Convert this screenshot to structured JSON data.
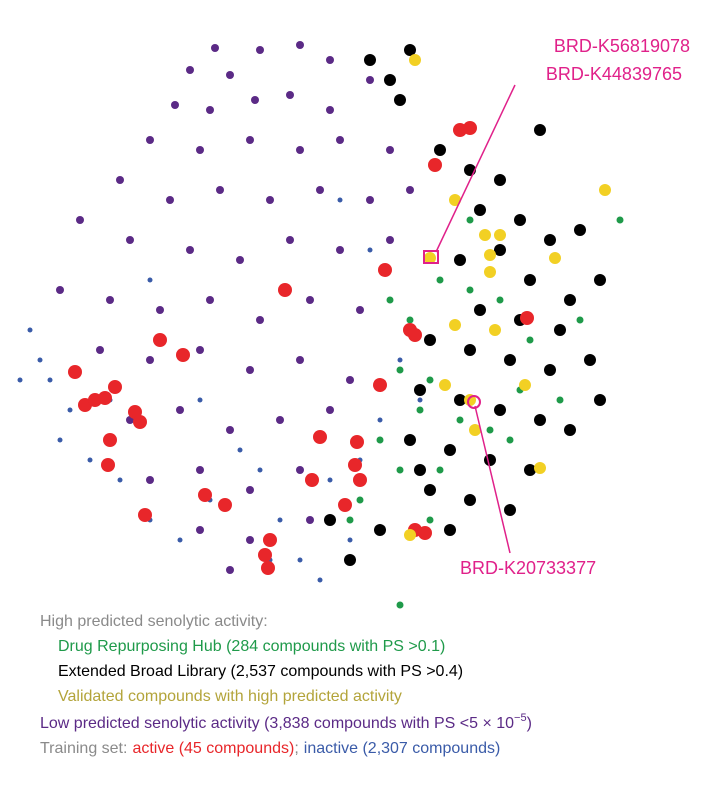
{
  "chart_data": {
    "type": "scatter",
    "xlim": [
      0,
      640
    ],
    "ylim": [
      0,
      590
    ],
    "legend_heading": "High predicted senolytic activity:",
    "training_set_label": "Training set:",
    "legend_separator": ";",
    "series": [
      {
        "name": "Low predicted senolytic activity (3,838 compounds with PS <5 × 10",
        "name_superscript": "−5",
        "name_suffix": ")",
        "color": "#5b2a86",
        "x": [
          215,
          260,
          300,
          190,
          230,
          330,
          175,
          210,
          255,
          290,
          330,
          370,
          150,
          200,
          250,
          300,
          340,
          390,
          120,
          170,
          220,
          270,
          320,
          370,
          410,
          80,
          130,
          190,
          240,
          290,
          340,
          390,
          60,
          110,
          160,
          210,
          260,
          310,
          360,
          100,
          150,
          200,
          250,
          300,
          350,
          130,
          180,
          230,
          280,
          330,
          150,
          200,
          250,
          300,
          200,
          250,
          310,
          230
        ],
        "values": [
          562,
          560,
          565,
          540,
          535,
          550,
          505,
          500,
          510,
          515,
          500,
          530,
          470,
          460,
          470,
          460,
          470,
          460,
          430,
          410,
          420,
          410,
          420,
          410,
          420,
          390,
          370,
          360,
          350,
          370,
          360,
          370,
          320,
          310,
          300,
          310,
          290,
          310,
          300,
          260,
          250,
          260,
          240,
          250,
          230,
          190,
          200,
          180,
          190,
          200,
          130,
          140,
          120,
          140,
          80,
          70,
          90,
          40
        ]
      },
      {
        "name": "inactive (2,307 compounds)",
        "color": "#3a5ba8",
        "x": [
          30,
          50,
          70,
          60,
          90,
          120,
          150,
          180,
          210,
          260,
          300,
          320,
          350,
          380,
          400,
          390,
          370,
          340,
          150,
          200,
          240,
          280,
          330,
          110,
          40,
          20,
          270,
          360,
          420,
          410
        ],
        "values": [
          280,
          230,
          200,
          170,
          150,
          130,
          90,
          70,
          110,
          140,
          50,
          30,
          70,
          190,
          250,
          310,
          360,
          410,
          330,
          210,
          160,
          90,
          130,
          210,
          250,
          230,
          50,
          150,
          210,
          290
        ]
      },
      {
        "name": "Extended Broad Library (2,537 compounds with PS >0.4)",
        "color": "#000000",
        "x": [
          370,
          390,
          410,
          400,
          540,
          440,
          470,
          500,
          480,
          520,
          550,
          580,
          500,
          460,
          530,
          570,
          600,
          480,
          520,
          560,
          430,
          470,
          510,
          550,
          420,
          460,
          500,
          540,
          570,
          410,
          450,
          490,
          530,
          430,
          470,
          510,
          450,
          380,
          350,
          330,
          420,
          590,
          600
        ],
        "values": [
          550,
          530,
          560,
          510,
          480,
          460,
          440,
          430,
          400,
          390,
          370,
          380,
          360,
          350,
          330,
          310,
          330,
          300,
          290,
          280,
          270,
          260,
          250,
          240,
          220,
          210,
          200,
          190,
          180,
          170,
          160,
          150,
          140,
          120,
          110,
          100,
          80,
          80,
          50,
          90,
          140,
          250,
          210
        ]
      },
      {
        "name": "Drug Repurposing Hub (284 compounds with PS >0.1)",
        "color": "#1f9a4a",
        "x": [
          390,
          410,
          440,
          470,
          500,
          530,
          400,
          430,
          460,
          490,
          510,
          420,
          380,
          400,
          440,
          360,
          350,
          520,
          560,
          580,
          470,
          620,
          400,
          430
        ],
        "values": [
          310,
          290,
          330,
          320,
          310,
          270,
          240,
          230,
          190,
          180,
          170,
          200,
          170,
          140,
          140,
          110,
          90,
          220,
          210,
          290,
          390,
          390,
          5,
          90
        ]
      },
      {
        "name": "active (45 compounds)",
        "color": "#e8262a",
        "x": [
          460,
          470,
          435,
          385,
          285,
          410,
          415,
          160,
          183,
          75,
          115,
          85,
          95,
          105,
          135,
          140,
          110,
          108,
          320,
          357,
          355,
          312,
          360,
          205,
          225,
          145,
          345,
          270,
          265,
          268,
          380,
          425,
          415,
          527
        ],
        "values": [
          480,
          482,
          445,
          340,
          320,
          280,
          275,
          270,
          255,
          238,
          223,
          205,
          210,
          212,
          198,
          188,
          170,
          145,
          173,
          168,
          145,
          130,
          130,
          115,
          105,
          95,
          105,
          70,
          55,
          42,
          225,
          77,
          80,
          292
        ]
      },
      {
        "name": "Validated compounds with high predicted activity",
        "color": "#f2d024",
        "label_color": "#b3a43a",
        "x": [
          415,
          605,
          455,
          485,
          500,
          490,
          555,
          430,
          490,
          455,
          495,
          445,
          470,
          540,
          410,
          525,
          475
        ],
        "values": [
          550,
          420,
          410,
          375,
          375,
          355,
          352,
          352,
          338,
          285,
          280,
          225,
          210,
          142,
          75,
          225,
          180
        ]
      }
    ],
    "annotations": [
      {
        "text": "BRD-K56819078"
      },
      {
        "text": "BRD-K44839765"
      },
      {
        "text": "BRD-K20733377"
      }
    ]
  }
}
